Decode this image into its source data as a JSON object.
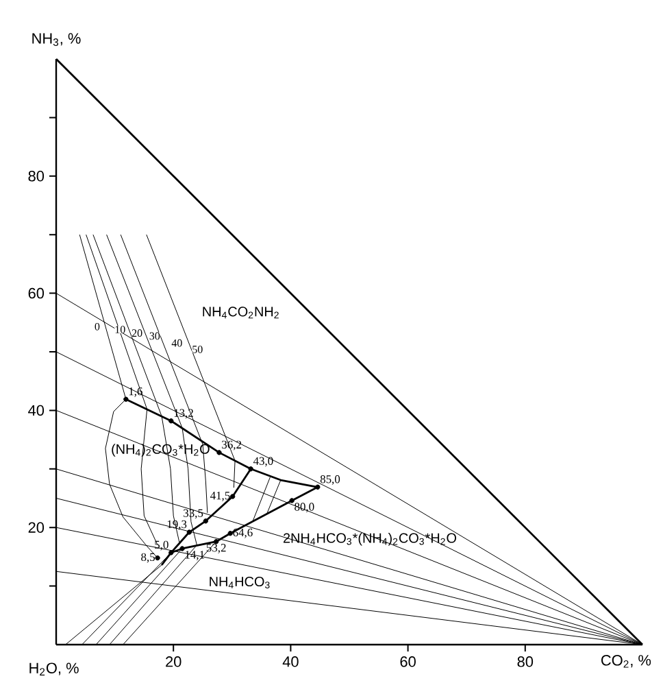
{
  "chart_data": {
    "type": "line",
    "xlabel": "CO$_{2}$, %",
    "ylabel": "NH$_{3}$, %",
    "xlim": [
      0,
      100
    ],
    "ylim": [
      0,
      100
    ],
    "xticks": [
      20,
      40,
      60,
      80
    ],
    "yticks": [
      {
        "value": 10,
        "label": null
      },
      20,
      {
        "value": 30,
        "label": null
      },
      40,
      {
        "value": 50,
        "label": null
      },
      60,
      {
        "value": 70,
        "label": null
      },
      80,
      {
        "value": 90,
        "label": null
      }
    ],
    "series": [
      {
        "color": "#000000",
        "x": [
          0,
          100
        ],
        "values": [
          100,
          0
        ]
      },
      {
        "color": "#000000",
        "x": [
          0,
          100
        ],
        "values": [
          60,
          0
        ]
      },
      {
        "color": "#000000",
        "x": [
          0,
          100
        ],
        "values": [
          50,
          0
        ]
      },
      {
        "color": "#000000",
        "x": [
          0,
          100
        ],
        "values": [
          40,
          0
        ]
      },
      {
        "color": "#000000",
        "x": [
          0,
          100
        ],
        "values": [
          30,
          0
        ]
      },
      {
        "color": "#000000",
        "x": [
          0,
          100
        ],
        "values": [
          25,
          0
        ]
      },
      {
        "color": "#000000",
        "x": [
          0,
          100
        ],
        "values": [
          20,
          0
        ]
      },
      {
        "color": "#000000",
        "x": [
          0,
          100
        ],
        "values": [
          12.5,
          0
        ]
      },
      {
        "color": "#000000",
        "x": [
          11.9,
          19.6,
          27.8,
          33.2,
          38.3,
          44.6
        ],
        "values": [
          41.9,
          38.2,
          32.8,
          30.0,
          28.1,
          26.9
        ]
      },
      {
        "color": "#000000",
        "x": [
          44.6,
          40.2,
          29.7,
          27.3,
          21.5,
          19.6,
          18.0
        ],
        "values": [
          26.9,
          24.6,
          19.0,
          17.6,
          16.4,
          15.7,
          13.6
        ]
      },
      {
        "color": "#000000",
        "x": [
          33.2,
          30.1,
          25.5,
          22.7,
          19.6
        ],
        "values": [
          30.0,
          25.3,
          21.1,
          19.2,
          15.7
        ]
      },
      {
        "color": "#000000",
        "x": [
          11.9,
          9.8,
          8.4,
          9.1,
          11.4,
          15.4,
          17.3
        ],
        "values": [
          41.9,
          39.8,
          33.5,
          27.4,
          21.8,
          16.9,
          14.8
        ]
      },
      {
        "color": "#000000",
        "x": [
          4.0,
          11.9
        ],
        "values": [
          70,
          41.9
        ]
      },
      {
        "color": "#000000",
        "x": [
          5.1,
          15.5,
          14.5,
          15.0,
          17.3
        ],
        "values": [
          70,
          40.2,
          30,
          22,
          17
        ]
      },
      {
        "color": "#000000",
        "x": [
          6.3,
          18.0,
          19.5,
          20.0,
          21.0
        ],
        "values": [
          70,
          39.0,
          30,
          22,
          17.5
        ]
      },
      {
        "color": "#000000",
        "x": [
          8.6,
          21.5,
          22.5,
          23.0,
          24.0
        ],
        "values": [
          70,
          37.0,
          30,
          21,
          17
        ]
      },
      {
        "color": "#000000",
        "x": [
          11.0,
          25.0,
          25.5,
          25.8
        ],
        "values": [
          70,
          34.2,
          28,
          22.5
        ]
      },
      {
        "color": "#000000",
        "x": [
          15.4,
          30.5,
          30.3
        ],
        "values": [
          70,
          31.4,
          26.8
        ]
      },
      {
        "color": "#000000",
        "x": [
          36.5,
          33.5
        ],
        "values": [
          28.6,
          21.0
        ]
      },
      {
        "color": "#000000",
        "x": [
          38.3,
          36.0
        ],
        "values": [
          28.1,
          22.5
        ]
      },
      {
        "color": "#000000",
        "x": [
          18.0,
          1.6
        ],
        "values": [
          13.6,
          0
        ]
      },
      {
        "color": "#000000",
        "x": [
          19.6,
          4.4
        ],
        "values": [
          15.7,
          0
        ]
      },
      {
        "color": "#000000",
        "x": [
          21.5,
          6.8
        ],
        "values": [
          16.4,
          0
        ]
      },
      {
        "color": "#000000",
        "x": [
          24.0,
          9.1
        ],
        "values": [
          17.0,
          0
        ]
      },
      {
        "color": "#000000",
        "x": [
          27.3,
          11.4
        ],
        "values": [
          17.6,
          0
        ]
      },
      {
        "type": "scatter",
        "color": "#000000",
        "x": [
          11.9,
          19.6,
          27.8,
          33.2,
          44.6,
          40.2,
          30.1,
          25.5,
          22.7,
          29.7,
          27.3,
          21.5,
          19.6,
          17.3
        ],
        "values": [
          41.9,
          38.2,
          32.8,
          30.0,
          26.9,
          24.6,
          25.3,
          21.1,
          19.2,
          19.0,
          17.6,
          16.4,
          15.7,
          14.8
        ]
      }
    ],
    "annotations": [
      "H$_{2}$O, %",
      "NH$_{4}$CO$_{2}$NH$_{2}$",
      "(NH$_{4}$)$_{2}$CO$_{3}$*H$_{2}$O",
      "2NH$_{4}$HCO$_{3}$*(NH$_{4}$)$_{2}$CO$_{3}$*H$_{2}$O",
      "NH$_{4}$HCO$_{3}$",
      {
        "text": "0",
        "x": 7.0,
        "y": 54.3
      },
      {
        "text": "10",
        "x": 10.9,
        "y": 53.8
      },
      {
        "text": "20",
        "x": 13.8,
        "y": 53.2
      },
      {
        "text": "30",
        "x": 16.8,
        "y": 52.7
      },
      {
        "text": "40",
        "x": 20.6,
        "y": 51.5
      },
      {
        "text": "50",
        "x": 24.1,
        "y": 50.4
      },
      {
        "text": "1,6",
        "x": 11.9,
        "y": 41.9
      },
      {
        "text": "13,2",
        "x": 19.6,
        "y": 38.2
      },
      {
        "text": "36,2",
        "x": 27.8,
        "y": 32.8
      },
      {
        "text": "43,0",
        "x": 33.2,
        "y": 30.0
      },
      {
        "text": "85,0",
        "x": 44.6,
        "y": 26.9
      },
      {
        "text": "80,0",
        "x": 40.2,
        "y": 24.6
      },
      {
        "text": "41,5",
        "x": 30.1,
        "y": 25.3
      },
      {
        "text": "33,5",
        "x": 25.5,
        "y": 21.1
      },
      {
        "text": "19,3",
        "x": 22.7,
        "y": 19.2
      },
      {
        "text": "64,6",
        "x": 29.7,
        "y": 19.0
      },
      {
        "text": "53,2",
        "x": 27.3,
        "y": 17.6
      },
      {
        "text": "14,1",
        "x": 21.5,
        "y": 16.4
      },
      {
        "text": "5,0",
        "x": 19.6,
        "y": 15.7
      },
      {
        "text": "8,5",
        "x": 17.3,
        "y": 14.8
      }
    ]
  }
}
